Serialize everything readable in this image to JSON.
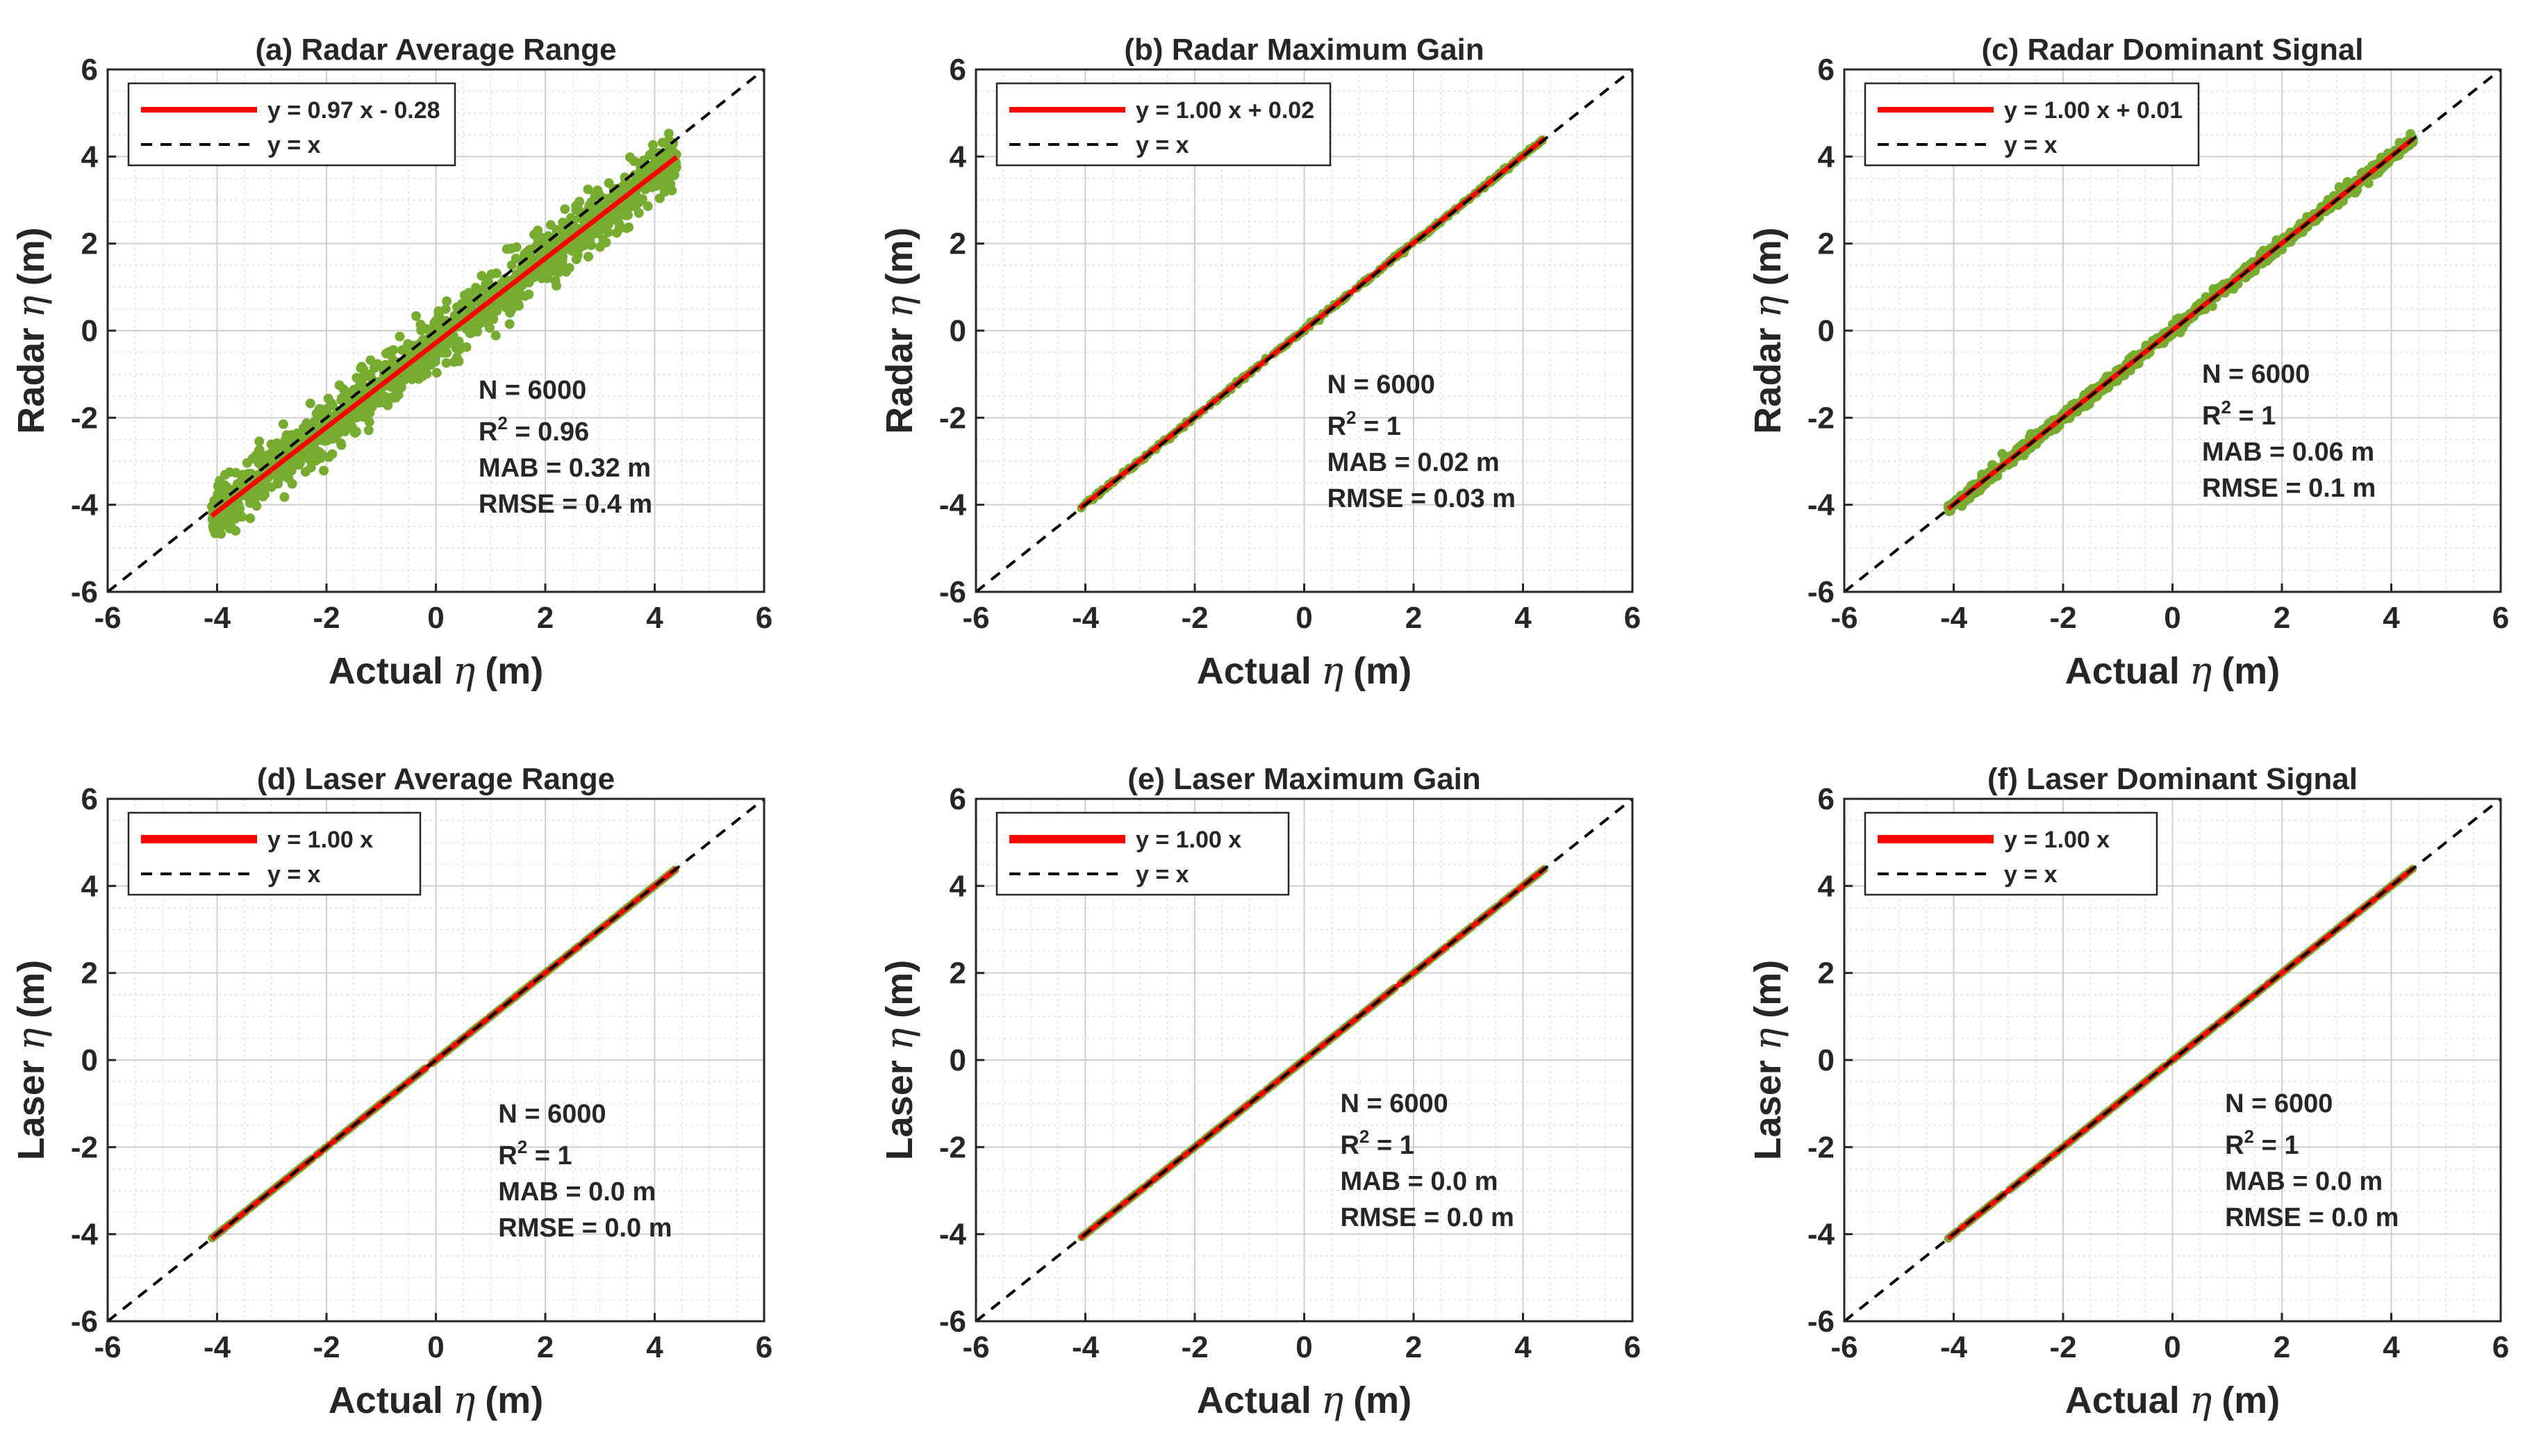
{
  "figure": {
    "colors": {
      "scatter": "#77ac30",
      "fit": "#ff0000",
      "identity": "#000000",
      "grid": "#dcdcdc",
      "axes": "#262626"
    },
    "shared_axis": {
      "xlim": [
        -6,
        6
      ],
      "ylim": [
        -6,
        6
      ],
      "ticks": [
        "-6",
        "-4",
        "-2",
        "0",
        "2",
        "4",
        "6"
      ],
      "xlabel_prefix": "Actual",
      "xlabel_symbol": "η",
      "xlabel_suffix": "(m)"
    }
  },
  "chart_data": [
    {
      "type": "scatter",
      "title": "(a) Radar Average Range",
      "ylabel_prefix": "Radar",
      "ylabel_symbol": "η",
      "ylabel_suffix": "(m)",
      "xlim": [
        -6,
        6
      ],
      "ylim": [
        -6,
        6
      ],
      "series": [
        {
          "name": "observations",
          "x_range": [
            -4.1,
            4.4
          ],
          "approx_spread_m": 0.4
        },
        {
          "name": "fit",
          "slope": 0.97,
          "intercept": -0.28,
          "x_range": [
            -4.1,
            4.4
          ]
        },
        {
          "name": "identity",
          "slope": 1,
          "intercept": 0,
          "x_range": [
            -6,
            6
          ]
        }
      ],
      "legend": {
        "fit_label": "y = 0.97 x  - 0.28",
        "identity_label": "y = x",
        "location": "top-left"
      },
      "stats": {
        "n": "N = 6000",
        "r2_label": "R",
        "r2_sup": "2",
        "r2_value": " = 0.96",
        "mab": "MAB = 0.32 m",
        "rmse": "RMSE = 0.4 m"
      }
    },
    {
      "type": "scatter",
      "title": "(b) Radar Maximum Gain",
      "ylabel_prefix": "Radar",
      "ylabel_symbol": "η",
      "ylabel_suffix": "(m)",
      "xlim": [
        -6,
        6
      ],
      "ylim": [
        -6,
        6
      ],
      "series": [
        {
          "name": "observations",
          "x_range": [
            -4.1,
            4.4
          ],
          "approx_spread_m": 0.03
        },
        {
          "name": "fit",
          "slope": 1.0,
          "intercept": 0.02,
          "x_range": [
            -4.1,
            4.4
          ]
        },
        {
          "name": "identity",
          "slope": 1,
          "intercept": 0,
          "x_range": [
            -6,
            6
          ]
        }
      ],
      "legend": {
        "fit_label": "y = 1.00 x + 0.02",
        "identity_label": "y = x",
        "location": "top-left"
      },
      "stats": {
        "n": "N = 6000",
        "r2_label": "R",
        "r2_sup": "2",
        "r2_value": " = 1",
        "mab": "MAB = 0.02 m",
        "rmse": "RMSE = 0.03 m"
      }
    },
    {
      "type": "scatter",
      "title": "(c) Radar Dominant Signal",
      "ylabel_prefix": "Radar",
      "ylabel_symbol": "η",
      "ylabel_suffix": "(m)",
      "xlim": [
        -6,
        6
      ],
      "ylim": [
        -6,
        6
      ],
      "series": [
        {
          "name": "observations",
          "x_range": [
            -4.1,
            4.4
          ],
          "approx_spread_m": 0.1
        },
        {
          "name": "fit",
          "slope": 1.0,
          "intercept": 0.01,
          "x_range": [
            -4.1,
            4.4
          ]
        },
        {
          "name": "identity",
          "slope": 1,
          "intercept": 0,
          "x_range": [
            -6,
            6
          ]
        }
      ],
      "legend": {
        "fit_label": "y = 1.00 x + 0.01",
        "identity_label": "y = x",
        "location": "top-left"
      },
      "stats": {
        "n": "N = 6000",
        "r2_label": "R",
        "r2_sup": "2",
        "r2_value": " = 1",
        "mab": "MAB = 0.06 m",
        "rmse": "RMSE = 0.1 m"
      }
    },
    {
      "type": "scatter",
      "title": "(d) Laser Average Range",
      "ylabel_prefix": "Laser",
      "ylabel_symbol": "η",
      "ylabel_suffix": "(m)",
      "xlim": [
        -6,
        6
      ],
      "ylim": [
        -6,
        6
      ],
      "series": [
        {
          "name": "observations",
          "x_range": [
            -4.1,
            4.4
          ],
          "approx_spread_m": 0.0
        },
        {
          "name": "fit",
          "slope": 1.0,
          "intercept": 0,
          "x_range": [
            -4.1,
            4.4
          ]
        },
        {
          "name": "identity",
          "slope": 1,
          "intercept": 0,
          "x_range": [
            -6,
            6
          ]
        }
      ],
      "legend": {
        "fit_label": "y = 1.00 x",
        "identity_label": "y = x",
        "location": "top-left"
      },
      "stats": {
        "n": "N = 6000",
        "r2_label": "R",
        "r2_sup": "2",
        "r2_value": " = 1",
        "mab": "MAB = 0.0 m",
        "rmse": "RMSE = 0.0 m"
      }
    },
    {
      "type": "scatter",
      "title": "(e) Laser Maximum Gain",
      "ylabel_prefix": "Laser",
      "ylabel_symbol": "η",
      "ylabel_suffix": "(m)",
      "xlim": [
        -6,
        6
      ],
      "ylim": [
        -6,
        6
      ],
      "series": [
        {
          "name": "observations",
          "x_range": [
            -4.1,
            4.4
          ],
          "approx_spread_m": 0.0
        },
        {
          "name": "fit",
          "slope": 1.0,
          "intercept": 0,
          "x_range": [
            -4.1,
            4.4
          ]
        },
        {
          "name": "identity",
          "slope": 1,
          "intercept": 0,
          "x_range": [
            -6,
            6
          ]
        }
      ],
      "legend": {
        "fit_label": "y = 1.00 x",
        "identity_label": "y = x",
        "location": "top-left"
      },
      "stats": {
        "n": "N = 6000",
        "r2_label": "R",
        "r2_sup": "2",
        "r2_value": " = 1",
        "mab": "MAB = 0.0 m",
        "rmse": "RMSE = 0.0 m"
      }
    },
    {
      "type": "scatter",
      "title": "(f) Laser Dominant Signal",
      "ylabel_prefix": "Laser",
      "ylabel_symbol": "η",
      "ylabel_suffix": "(m)",
      "xlim": [
        -6,
        6
      ],
      "ylim": [
        -6,
        6
      ],
      "series": [
        {
          "name": "observations",
          "x_range": [
            -4.1,
            4.4
          ],
          "approx_spread_m": 0.0
        },
        {
          "name": "fit",
          "slope": 1.0,
          "intercept": 0,
          "x_range": [
            -4.1,
            4.4
          ]
        },
        {
          "name": "identity",
          "slope": 1,
          "intercept": 0,
          "x_range": [
            -6,
            6
          ]
        }
      ],
      "legend": {
        "fit_label": "y = 1.00 x",
        "identity_label": "y = x",
        "location": "top-left"
      },
      "stats": {
        "n": "N = 6000",
        "r2_label": "R",
        "r2_sup": "2",
        "r2_value": " = 1",
        "mab": "MAB = 0.0 m",
        "rmse": "RMSE = 0.0 m"
      }
    }
  ]
}
